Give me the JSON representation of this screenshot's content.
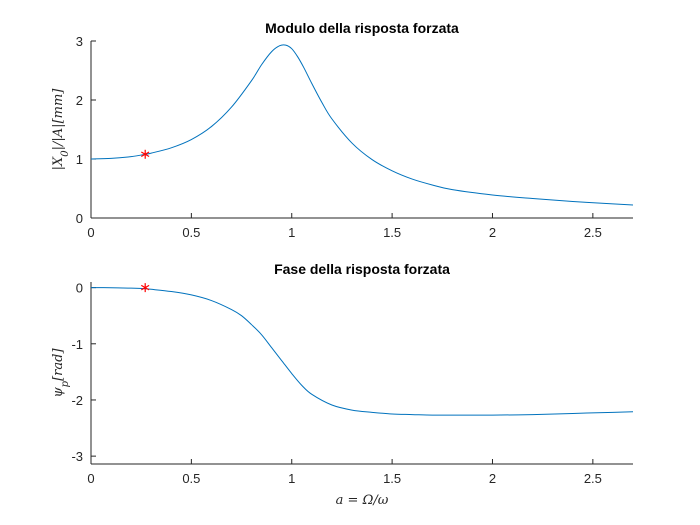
{
  "chart_data": [
    {
      "type": "line",
      "title": "Modulo della risposta forzata",
      "xlabel": "",
      "ylabel": "|X_0|/|A|[mm]",
      "xlim": [
        0,
        2.7
      ],
      "ylim": [
        0,
        3
      ],
      "xticks": [
        "0",
        "0.5",
        "1",
        "1.5",
        "2",
        "2.5"
      ],
      "yticks": [
        "0",
        "1",
        "2",
        "3"
      ],
      "series": [
        {
          "color": "#0072BD",
          "x": [
            0,
            0.1,
            0.2,
            0.27,
            0.3,
            0.4,
            0.5,
            0.6,
            0.7,
            0.8,
            0.85,
            0.9,
            0.94,
            0.97,
            1.0,
            1.03,
            1.06,
            1.1,
            1.15,
            1.2,
            1.3,
            1.4,
            1.5,
            1.6,
            1.7,
            1.8,
            2.0,
            2.2,
            2.4,
            2.6,
            2.7
          ],
          "values": [
            1.0,
            1.01,
            1.04,
            1.08,
            1.1,
            1.19,
            1.33,
            1.55,
            1.88,
            2.33,
            2.6,
            2.82,
            2.92,
            2.93,
            2.87,
            2.73,
            2.55,
            2.28,
            1.96,
            1.68,
            1.27,
            0.99,
            0.8,
            0.66,
            0.56,
            0.48,
            0.39,
            0.33,
            0.28,
            0.24,
            0.22
          ]
        }
      ],
      "marker": {
        "x": 0.27,
        "y": 1.08,
        "color": "#FF0000",
        "symbol": "asterisk"
      }
    },
    {
      "type": "line",
      "title": "Fase della risposta forzata",
      "xlabel": "a = Ω/ω",
      "ylabel": "ψ_p[rad]",
      "xlim": [
        0,
        2.7
      ],
      "ylim": [
        -3.14,
        0.1
      ],
      "xticks": [
        "0",
        "0.5",
        "1",
        "1.5",
        "2",
        "2.5"
      ],
      "yticks": [
        "0",
        "-1",
        "-2",
        "-3"
      ],
      "series": [
        {
          "color": "#0072BD",
          "x": [
            0,
            0.1,
            0.2,
            0.27,
            0.3,
            0.4,
            0.5,
            0.6,
            0.7,
            0.75,
            0.8,
            0.85,
            0.9,
            0.95,
            1.0,
            1.05,
            1.1,
            1.2,
            1.3,
            1.4,
            1.5,
            1.6,
            1.7,
            1.8,
            1.9,
            2.0,
            2.2,
            2.4,
            2.6,
            2.7
          ],
          "values": [
            0.0,
            -0.002,
            -0.01,
            -0.02,
            -0.03,
            -0.07,
            -0.13,
            -0.23,
            -0.39,
            -0.5,
            -0.66,
            -0.84,
            -1.07,
            -1.3,
            -1.53,
            -1.74,
            -1.9,
            -2.09,
            -2.18,
            -2.22,
            -2.25,
            -2.26,
            -2.27,
            -2.27,
            -2.27,
            -2.27,
            -2.26,
            -2.24,
            -2.22,
            -2.21
          ]
        }
      ],
      "marker": {
        "x": 0.27,
        "y": 0.0,
        "color": "#FF0000",
        "symbol": "asterisk"
      }
    }
  ]
}
